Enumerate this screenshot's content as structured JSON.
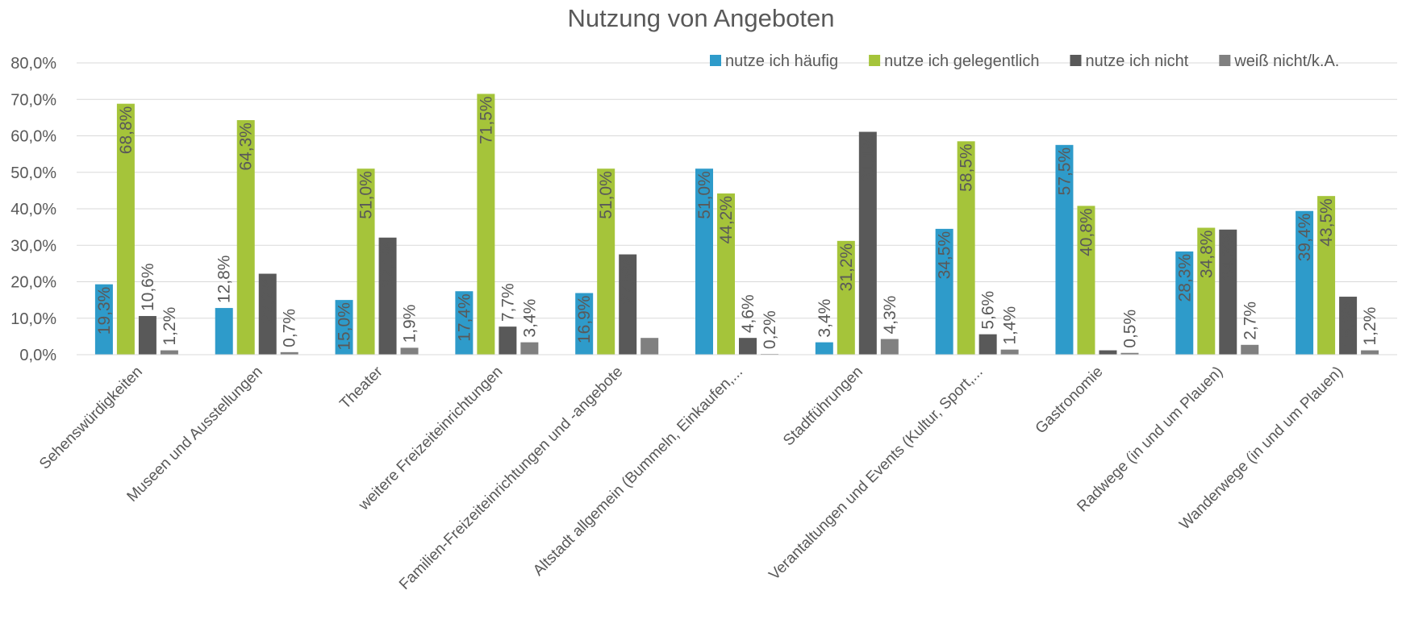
{
  "chart_data": {
    "type": "bar",
    "title": "Nutzung von Angeboten",
    "categories": [
      "Sehenswürdigkeiten",
      "Museen und Ausstellungen",
      "Theater",
      "weitere Freizeiteinrichtungen",
      "Familien-Freizeiteinrichtungen und -angebote",
      "Altstadt allgemein (Bummeln, Einkaufen,...",
      "Stadtführungen",
      "Verantaltungen und Events (Kultur, Sport,...",
      "Gastronomie",
      "Radwege (in und um Plauen)",
      "Wanderwege (in und um Plauen)"
    ],
    "series": [
      {
        "name": "nutze ich häufig",
        "color": "#2e9bca",
        "values": [
          19.3,
          12.8,
          15.0,
          17.4,
          16.9,
          51.0,
          3.4,
          34.5,
          57.5,
          28.3,
          39.4
        ],
        "value_labels": [
          "19,3%",
          "12,8%",
          "15,0%",
          "17,4%",
          "16,9%",
          "51,0%",
          "3,4%",
          "34,5%",
          "57,5%",
          "28,3%",
          "39,4%"
        ]
      },
      {
        "name": "nutze ich gelegentlich",
        "color": "#a5c43a",
        "values": [
          68.8,
          64.3,
          51.0,
          71.5,
          51.0,
          44.2,
          31.2,
          58.5,
          40.8,
          34.8,
          43.5
        ],
        "value_labels": [
          "68,8%",
          "64,3%",
          "51,0%",
          "71,5%",
          "51,0%",
          "44,2%",
          "31,2%",
          "58,5%",
          "40,8%",
          "34,8%",
          "43,5%"
        ]
      },
      {
        "name": "nutze ich nicht",
        "color": "#595959",
        "values": [
          10.6,
          22.2,
          32.1,
          7.7,
          27.5,
          4.6,
          61.1,
          5.6,
          1.2,
          34.3,
          15.9
        ],
        "value_labels": [
          "10,6%",
          "22,2%",
          "32,1%",
          "7,7%",
          "27,5%",
          "4,6%",
          "61,1%",
          "5,6%",
          null,
          "34,3%",
          "15,9%"
        ]
      },
      {
        "name": "weiß nicht/k.A.",
        "color": "#808080",
        "values": [
          1.2,
          0.7,
          1.9,
          3.4,
          4.6,
          0.2,
          4.3,
          1.4,
          0.5,
          2.7,
          1.2
        ],
        "value_labels": [
          "1,2%",
          "0,7%",
          "1,9%",
          "3,4%",
          null,
          "0,2%",
          "4,3%",
          "1,4%",
          "0,5%",
          "2,7%",
          "1,2%"
        ]
      }
    ],
    "ylim": [
      0,
      80
    ],
    "yticks": [
      {
        "value": 0,
        "label": "0,0%"
      },
      {
        "value": 10,
        "label": "10,0%"
      },
      {
        "value": 20,
        "label": "20,0%"
      },
      {
        "value": 30,
        "label": "30,0%"
      },
      {
        "value": 40,
        "label": "40,0%"
      },
      {
        "value": 50,
        "label": "50,0%"
      },
      {
        "value": 60,
        "label": "60,0%"
      },
      {
        "value": 70,
        "label": "70,0%"
      },
      {
        "value": 80,
        "label": "80,0%"
      }
    ],
    "grid": true,
    "legend": "top-right"
  }
}
